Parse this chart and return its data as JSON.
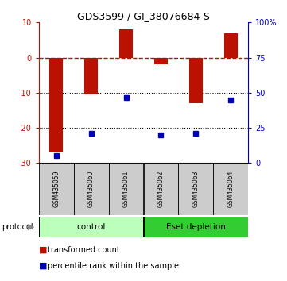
{
  "title": "GDS3599 / GI_38076684-S",
  "samples": [
    "GSM435059",
    "GSM435060",
    "GSM435061",
    "GSM435062",
    "GSM435063",
    "GSM435064"
  ],
  "red_values": [
    -27,
    -10.5,
    8,
    -2,
    -13,
    7
  ],
  "blue_values": [
    -28,
    -21.5,
    -11.5,
    -22,
    -21.5,
    -12
  ],
  "ylim_left": [
    -30,
    10
  ],
  "ylim_right": [
    0,
    100
  ],
  "yticks_left": [
    -30,
    -20,
    -10,
    0,
    10
  ],
  "ytick_labels_left": [
    "-30",
    "-20",
    "-10",
    "0",
    "10"
  ],
  "yticks_right": [
    0,
    25,
    50,
    75,
    100
  ],
  "ytick_labels_right": [
    "0",
    "25",
    "50",
    "75",
    "100%"
  ],
  "bar_color": "#bb1100",
  "dot_color": "#0000bb",
  "dashed_color": "#bb1100",
  "sample_box_color": "#cccccc",
  "control_color": "#bbffbb",
  "eset_color": "#33cc33",
  "background_color": "#ffffff",
  "legend_red": "transformed count",
  "legend_blue": "percentile rank within the sample",
  "protocol_label": "protocol",
  "control_label": "control",
  "eset_label": "Eset depletion",
  "bar_width": 0.4
}
